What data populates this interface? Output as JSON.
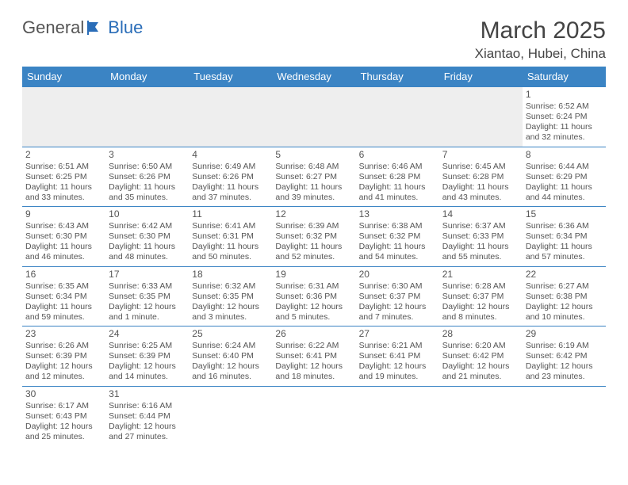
{
  "logo": {
    "general": "General",
    "blue": "Blue"
  },
  "title": "March 2025",
  "location": "Xiantao, Hubei, China",
  "headers": [
    "Sunday",
    "Monday",
    "Tuesday",
    "Wednesday",
    "Thursday",
    "Friday",
    "Saturday"
  ],
  "colors": {
    "header_bg": "#3b84c4",
    "header_text": "#ffffff",
    "border": "#3b84c4",
    "empty_bg": "#eeeeee",
    "logo_blue": "#2a6db8"
  },
  "weeks": [
    [
      null,
      null,
      null,
      null,
      null,
      null,
      {
        "n": "1",
        "sunrise": "Sunrise: 6:52 AM",
        "sunset": "Sunset: 6:24 PM",
        "daylight": "Daylight: 11 hours and 32 minutes."
      }
    ],
    [
      {
        "n": "2",
        "sunrise": "Sunrise: 6:51 AM",
        "sunset": "Sunset: 6:25 PM",
        "daylight": "Daylight: 11 hours and 33 minutes."
      },
      {
        "n": "3",
        "sunrise": "Sunrise: 6:50 AM",
        "sunset": "Sunset: 6:26 PM",
        "daylight": "Daylight: 11 hours and 35 minutes."
      },
      {
        "n": "4",
        "sunrise": "Sunrise: 6:49 AM",
        "sunset": "Sunset: 6:26 PM",
        "daylight": "Daylight: 11 hours and 37 minutes."
      },
      {
        "n": "5",
        "sunrise": "Sunrise: 6:48 AM",
        "sunset": "Sunset: 6:27 PM",
        "daylight": "Daylight: 11 hours and 39 minutes."
      },
      {
        "n": "6",
        "sunrise": "Sunrise: 6:46 AM",
        "sunset": "Sunset: 6:28 PM",
        "daylight": "Daylight: 11 hours and 41 minutes."
      },
      {
        "n": "7",
        "sunrise": "Sunrise: 6:45 AM",
        "sunset": "Sunset: 6:28 PM",
        "daylight": "Daylight: 11 hours and 43 minutes."
      },
      {
        "n": "8",
        "sunrise": "Sunrise: 6:44 AM",
        "sunset": "Sunset: 6:29 PM",
        "daylight": "Daylight: 11 hours and 44 minutes."
      }
    ],
    [
      {
        "n": "9",
        "sunrise": "Sunrise: 6:43 AM",
        "sunset": "Sunset: 6:30 PM",
        "daylight": "Daylight: 11 hours and 46 minutes."
      },
      {
        "n": "10",
        "sunrise": "Sunrise: 6:42 AM",
        "sunset": "Sunset: 6:30 PM",
        "daylight": "Daylight: 11 hours and 48 minutes."
      },
      {
        "n": "11",
        "sunrise": "Sunrise: 6:41 AM",
        "sunset": "Sunset: 6:31 PM",
        "daylight": "Daylight: 11 hours and 50 minutes."
      },
      {
        "n": "12",
        "sunrise": "Sunrise: 6:39 AM",
        "sunset": "Sunset: 6:32 PM",
        "daylight": "Daylight: 11 hours and 52 minutes."
      },
      {
        "n": "13",
        "sunrise": "Sunrise: 6:38 AM",
        "sunset": "Sunset: 6:32 PM",
        "daylight": "Daylight: 11 hours and 54 minutes."
      },
      {
        "n": "14",
        "sunrise": "Sunrise: 6:37 AM",
        "sunset": "Sunset: 6:33 PM",
        "daylight": "Daylight: 11 hours and 55 minutes."
      },
      {
        "n": "15",
        "sunrise": "Sunrise: 6:36 AM",
        "sunset": "Sunset: 6:34 PM",
        "daylight": "Daylight: 11 hours and 57 minutes."
      }
    ],
    [
      {
        "n": "16",
        "sunrise": "Sunrise: 6:35 AM",
        "sunset": "Sunset: 6:34 PM",
        "daylight": "Daylight: 11 hours and 59 minutes."
      },
      {
        "n": "17",
        "sunrise": "Sunrise: 6:33 AM",
        "sunset": "Sunset: 6:35 PM",
        "daylight": "Daylight: 12 hours and 1 minute."
      },
      {
        "n": "18",
        "sunrise": "Sunrise: 6:32 AM",
        "sunset": "Sunset: 6:35 PM",
        "daylight": "Daylight: 12 hours and 3 minutes."
      },
      {
        "n": "19",
        "sunrise": "Sunrise: 6:31 AM",
        "sunset": "Sunset: 6:36 PM",
        "daylight": "Daylight: 12 hours and 5 minutes."
      },
      {
        "n": "20",
        "sunrise": "Sunrise: 6:30 AM",
        "sunset": "Sunset: 6:37 PM",
        "daylight": "Daylight: 12 hours and 7 minutes."
      },
      {
        "n": "21",
        "sunrise": "Sunrise: 6:28 AM",
        "sunset": "Sunset: 6:37 PM",
        "daylight": "Daylight: 12 hours and 8 minutes."
      },
      {
        "n": "22",
        "sunrise": "Sunrise: 6:27 AM",
        "sunset": "Sunset: 6:38 PM",
        "daylight": "Daylight: 12 hours and 10 minutes."
      }
    ],
    [
      {
        "n": "23",
        "sunrise": "Sunrise: 6:26 AM",
        "sunset": "Sunset: 6:39 PM",
        "daylight": "Daylight: 12 hours and 12 minutes."
      },
      {
        "n": "24",
        "sunrise": "Sunrise: 6:25 AM",
        "sunset": "Sunset: 6:39 PM",
        "daylight": "Daylight: 12 hours and 14 minutes."
      },
      {
        "n": "25",
        "sunrise": "Sunrise: 6:24 AM",
        "sunset": "Sunset: 6:40 PM",
        "daylight": "Daylight: 12 hours and 16 minutes."
      },
      {
        "n": "26",
        "sunrise": "Sunrise: 6:22 AM",
        "sunset": "Sunset: 6:41 PM",
        "daylight": "Daylight: 12 hours and 18 minutes."
      },
      {
        "n": "27",
        "sunrise": "Sunrise: 6:21 AM",
        "sunset": "Sunset: 6:41 PM",
        "daylight": "Daylight: 12 hours and 19 minutes."
      },
      {
        "n": "28",
        "sunrise": "Sunrise: 6:20 AM",
        "sunset": "Sunset: 6:42 PM",
        "daylight": "Daylight: 12 hours and 21 minutes."
      },
      {
        "n": "29",
        "sunrise": "Sunrise: 6:19 AM",
        "sunset": "Sunset: 6:42 PM",
        "daylight": "Daylight: 12 hours and 23 minutes."
      }
    ],
    [
      {
        "n": "30",
        "sunrise": "Sunrise: 6:17 AM",
        "sunset": "Sunset: 6:43 PM",
        "daylight": "Daylight: 12 hours and 25 minutes."
      },
      {
        "n": "31",
        "sunrise": "Sunrise: 6:16 AM",
        "sunset": "Sunset: 6:44 PM",
        "daylight": "Daylight: 12 hours and 27 minutes."
      },
      null,
      null,
      null,
      null,
      null
    ]
  ]
}
